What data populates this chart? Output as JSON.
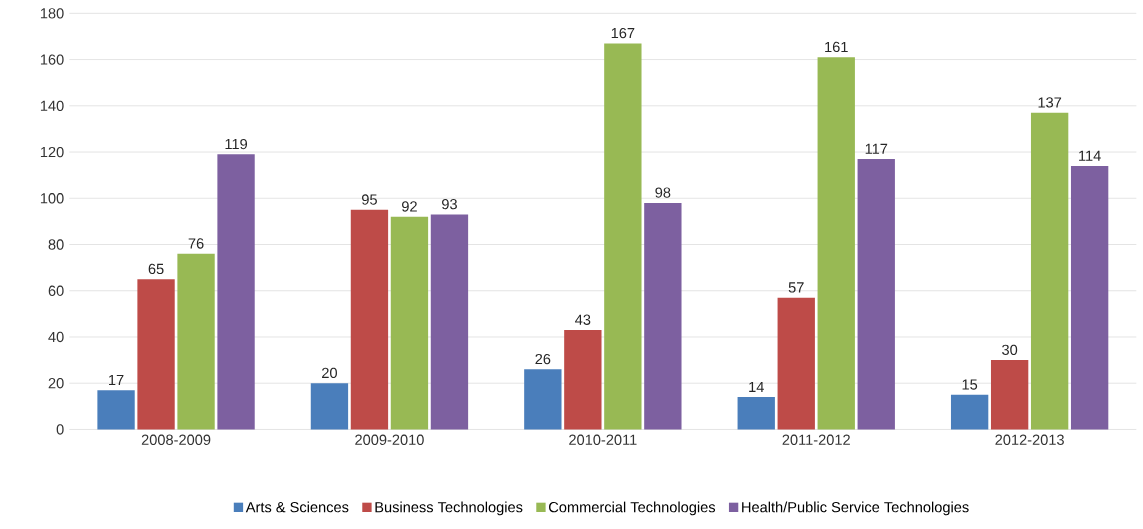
{
  "chart_data": {
    "type": "bar",
    "categories": [
      "2008-2009",
      "2009-2010",
      "2010-2011",
      "2011-2012",
      "2012-2013"
    ],
    "series": [
      {
        "name": "Arts & Sciences",
        "color": "#4a7ebb",
        "values": [
          17,
          20,
          26,
          14,
          15
        ]
      },
      {
        "name": "Business Technologies",
        "color": "#be4b48",
        "values": [
          65,
          95,
          43,
          57,
          30
        ]
      },
      {
        "name": "Commercial Technologies",
        "color": "#98b954",
        "values": [
          76,
          92,
          167,
          161,
          137
        ]
      },
      {
        "name": "Health/Public Service Technologies",
        "color": "#7d60a0",
        "values": [
          119,
          93,
          98,
          117,
          114
        ]
      }
    ],
    "ylim": [
      0,
      180
    ],
    "yticks": [
      0,
      20,
      40,
      60,
      80,
      100,
      120,
      140,
      160,
      180
    ],
    "grid": "y",
    "legend": "bottom",
    "data_labels": true
  }
}
